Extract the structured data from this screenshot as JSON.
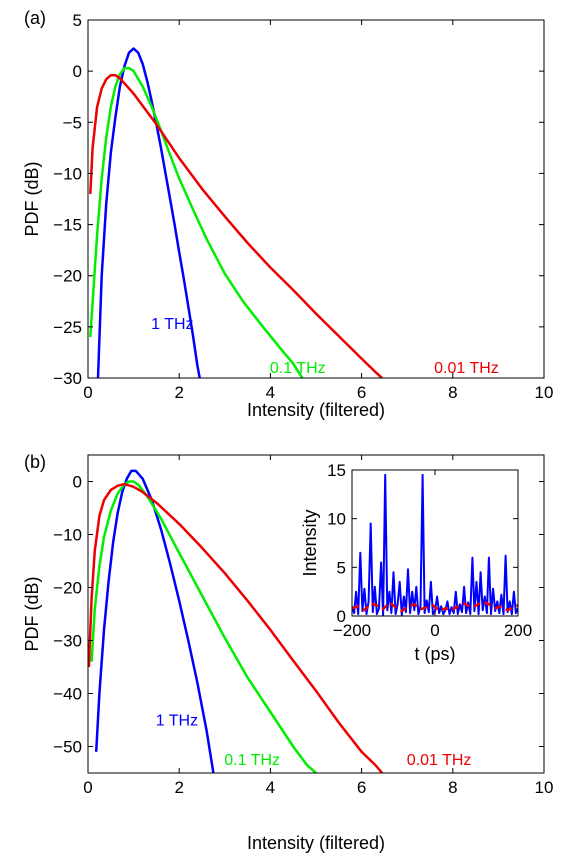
{
  "chart_data": [
    {
      "panel": "(a)",
      "type": "line",
      "xlabel": "Intensity (filtered)",
      "ylabel": "PDF (dB)",
      "xlim": [
        0,
        10
      ],
      "ylim": [
        -30,
        5
      ],
      "xticks": [
        "0",
        "2",
        "4",
        "6",
        "8",
        "10"
      ],
      "yticks": [
        "5",
        "0",
        "−5",
        "−10",
        "−15",
        "−20",
        "−25",
        "−30"
      ],
      "grid": false,
      "series": [
        {
          "name": "1 THz",
          "color": "#0000ff",
          "x": [
            0.22,
            0.3,
            0.4,
            0.5,
            0.6,
            0.7,
            0.8,
            0.9,
            1.0,
            1.1,
            1.2,
            1.3,
            1.4,
            1.5,
            1.6,
            1.7,
            1.8,
            1.9,
            2.0,
            2.1,
            2.2,
            2.3,
            2.4,
            2.45
          ],
          "y": [
            -30,
            -20,
            -13,
            -8,
            -4.5,
            -1.5,
            0.5,
            1.8,
            2.2,
            1.8,
            0.7,
            -1.0,
            -3.0,
            -5.2,
            -7.5,
            -10,
            -12.5,
            -15,
            -17.7,
            -20.3,
            -23,
            -25.8,
            -28.8,
            -30
          ]
        },
        {
          "name": "0.1 THz",
          "color": "#00ee00",
          "x": [
            0.05,
            0.2,
            0.3,
            0.4,
            0.5,
            0.6,
            0.7,
            0.8,
            0.9,
            1.0,
            1.2,
            1.4,
            1.6,
            1.8,
            2.0,
            2.3,
            2.6,
            3.0,
            3.4,
            3.8,
            4.2,
            4.5,
            4.7
          ],
          "y": [
            -26,
            -16,
            -10.5,
            -6.5,
            -3.5,
            -1.5,
            -0.3,
            0.3,
            0.3,
            0,
            -1.5,
            -3.5,
            -5.8,
            -8.2,
            -10.5,
            -13.5,
            -16.4,
            -19.8,
            -22.5,
            -24.8,
            -27,
            -28.6,
            -30
          ]
        },
        {
          "name": "0.01 THz",
          "color": "#ee0000",
          "x": [
            0.05,
            0.1,
            0.2,
            0.3,
            0.4,
            0.5,
            0.6,
            0.7,
            0.8,
            1.0,
            1.2,
            1.5,
            2.0,
            2.5,
            3.0,
            3.5,
            4.0,
            4.5,
            5.0,
            5.5,
            6.0,
            6.3,
            6.45
          ],
          "y": [
            -12,
            -7.5,
            -3.5,
            -1.7,
            -0.8,
            -0.4,
            -0.4,
            -0.7,
            -1.2,
            -2.2,
            -3.4,
            -5.2,
            -8.5,
            -11.5,
            -14.2,
            -16.8,
            -19.2,
            -21.4,
            -23.7,
            -25.9,
            -28.1,
            -29.4,
            -30
          ]
        }
      ],
      "annotations": [
        {
          "text": "1 THz",
          "color": "#0000ff",
          "x": 1.85,
          "y": -25.2
        },
        {
          "text": "0.1 THz",
          "color": "#00ee00",
          "x": 4.6,
          "y": -29.5
        },
        {
          "text": "0.01 THz",
          "color": "#ee0000",
          "x": 8.3,
          "y": -29.5
        }
      ]
    },
    {
      "panel": "(b)",
      "type": "line",
      "xlabel": "Intensity (filtered)",
      "ylabel": "PDF (dB)",
      "xlim": [
        0,
        10
      ],
      "ylim": [
        -55,
        5
      ],
      "xticks": [
        "0",
        "2",
        "4",
        "6",
        "8",
        "10"
      ],
      "yticks": [
        "0",
        "−10",
        "−20",
        "−30",
        "−40",
        "−50"
      ],
      "grid": false,
      "series": [
        {
          "name": "1 THz",
          "color": "#0000ff",
          "x": [
            0.18,
            0.25,
            0.35,
            0.45,
            0.55,
            0.65,
            0.75,
            0.85,
            0.95,
            1.05,
            1.2,
            1.4,
            1.6,
            1.8,
            2.0,
            2.2,
            2.4,
            2.6,
            2.75
          ],
          "y": [
            -51,
            -40,
            -28,
            -19,
            -11.5,
            -6,
            -2,
            0.5,
            2,
            2.0,
            0.5,
            -3.5,
            -9,
            -15.5,
            -22.5,
            -30,
            -38,
            -47,
            -55
          ]
        },
        {
          "name": "0.1 THz",
          "color": "#00ee00",
          "x": [
            0.08,
            0.15,
            0.25,
            0.35,
            0.5,
            0.65,
            0.8,
            0.9,
            1.0,
            1.1,
            1.3,
            1.6,
            2.0,
            2.5,
            3.0,
            3.5,
            4.0,
            4.5,
            4.8,
            5.0
          ],
          "y": [
            -34,
            -24,
            -16,
            -10.5,
            -5.5,
            -2.3,
            -0.5,
            0,
            0,
            -0.6,
            -2.8,
            -7,
            -13.5,
            -21.5,
            -29.5,
            -37,
            -43.5,
            -50,
            -53.5,
            -55
          ]
        },
        {
          "name": "0.01 THz",
          "color": "#ee0000",
          "x": [
            0.02,
            0.08,
            0.15,
            0.25,
            0.35,
            0.5,
            0.65,
            0.8,
            1.0,
            1.2,
            1.5,
            2.0,
            2.5,
            3.0,
            3.5,
            4.0,
            4.5,
            5.0,
            5.5,
            6.0,
            6.3,
            6.45
          ],
          "y": [
            -35,
            -22,
            -13,
            -6.5,
            -3.5,
            -1.6,
            -0.8,
            -0.5,
            -1.0,
            -2.0,
            -4.0,
            -8.0,
            -12.5,
            -17.3,
            -22.5,
            -28,
            -33.8,
            -39.5,
            -45.5,
            -51,
            -53.5,
            -55
          ]
        }
      ],
      "annotations": [
        {
          "text": "1 THz",
          "color": "#0000ff",
          "x": 1.95,
          "y": -46
        },
        {
          "text": "0.1 THz",
          "color": "#00ee00",
          "x": 3.6,
          "y": -53.5
        },
        {
          "text": "0.01 THz",
          "color": "#ee0000",
          "x": 7.7,
          "y": -53.5
        }
      ]
    },
    {
      "panel": "inset",
      "type": "line",
      "xlabel": "t (ps)",
      "ylabel": "Intensity",
      "xlim": [
        -200,
        200
      ],
      "ylim": [
        0,
        15
      ],
      "xticks": [
        "−200",
        "0",
        "200"
      ],
      "yticks": [
        "0",
        "5",
        "10",
        "15"
      ],
      "grid": false,
      "series": [
        {
          "name": "",
          "color": "#0000ff",
          "style": "solid",
          "x": [
            -200,
            -195,
            -190,
            -185,
            -180,
            -175,
            -170,
            -165,
            -160,
            -155,
            -150,
            -145,
            -140,
            -135,
            -130,
            -125,
            -120,
            -115,
            -110,
            -105,
            -100,
            -95,
            -90,
            -85,
            -80,
            -75,
            -70,
            -65,
            -60,
            -55,
            -50,
            -45,
            -40,
            -35,
            -30,
            -25,
            -20,
            -15,
            -10,
            -5,
            0,
            5,
            10,
            15,
            20,
            25,
            30,
            35,
            40,
            45,
            50,
            55,
            60,
            65,
            70,
            75,
            80,
            85,
            90,
            95,
            100,
            105,
            110,
            115,
            120,
            125,
            130,
            135,
            140,
            145,
            150,
            155,
            160,
            165,
            170,
            175,
            180,
            185,
            190,
            195,
            200
          ],
          "y": [
            1.0,
            0.3,
            2.5,
            0.2,
            6.5,
            0.5,
            2.8,
            0.2,
            1.5,
            9.5,
            0.4,
            3.0,
            0.2,
            0.8,
            5.5,
            0.1,
            14.5,
            0.6,
            2.5,
            0.3,
            4.5,
            0.2,
            1.2,
            3.5,
            0.1,
            2.0,
            0.4,
            4.8,
            0.3,
            2.5,
            0.6,
            3.0,
            0.2,
            1.0,
            14.5,
            0.3,
            1.6,
            0.4,
            3.5,
            0.2,
            0.5,
            2.0,
            0.3,
            1.0,
            0.2,
            0.6,
            1.5,
            0.2,
            0.9,
            0.3,
            2.5,
            0.2,
            1.2,
            0.4,
            3.0,
            0.3,
            1.4,
            0.2,
            6.0,
            0.5,
            3.5,
            0.2,
            4.5,
            0.6,
            2.0,
            0.3,
            6.0,
            0.2,
            2.8,
            0.5,
            1.5,
            0.3,
            2.2,
            0.2,
            6.2,
            0.4,
            1.5,
            0.2,
            2.5,
            0.3,
            0.8
          ]
        },
        {
          "name": "",
          "color": "#ee0000",
          "style": "dashed",
          "x": [
            -200,
            -185,
            -170,
            -155,
            -140,
            -125,
            -110,
            -95,
            -80,
            -65,
            -50,
            -35,
            -20,
            -5,
            10,
            25,
            40,
            55,
            70,
            85,
            100,
            115,
            130,
            145,
            160,
            175,
            190,
            200
          ],
          "y": [
            0.8,
            1.0,
            0.6,
            1.3,
            1.1,
            0.7,
            1.4,
            0.9,
            0.5,
            1.0,
            1.2,
            0.7,
            0.9,
            1.1,
            0.5,
            0.8,
            0.6,
            1.0,
            1.3,
            0.9,
            1.1,
            1.5,
            1.2,
            0.8,
            1.0,
            0.6,
            0.9,
            1.1
          ]
        }
      ]
    }
  ]
}
